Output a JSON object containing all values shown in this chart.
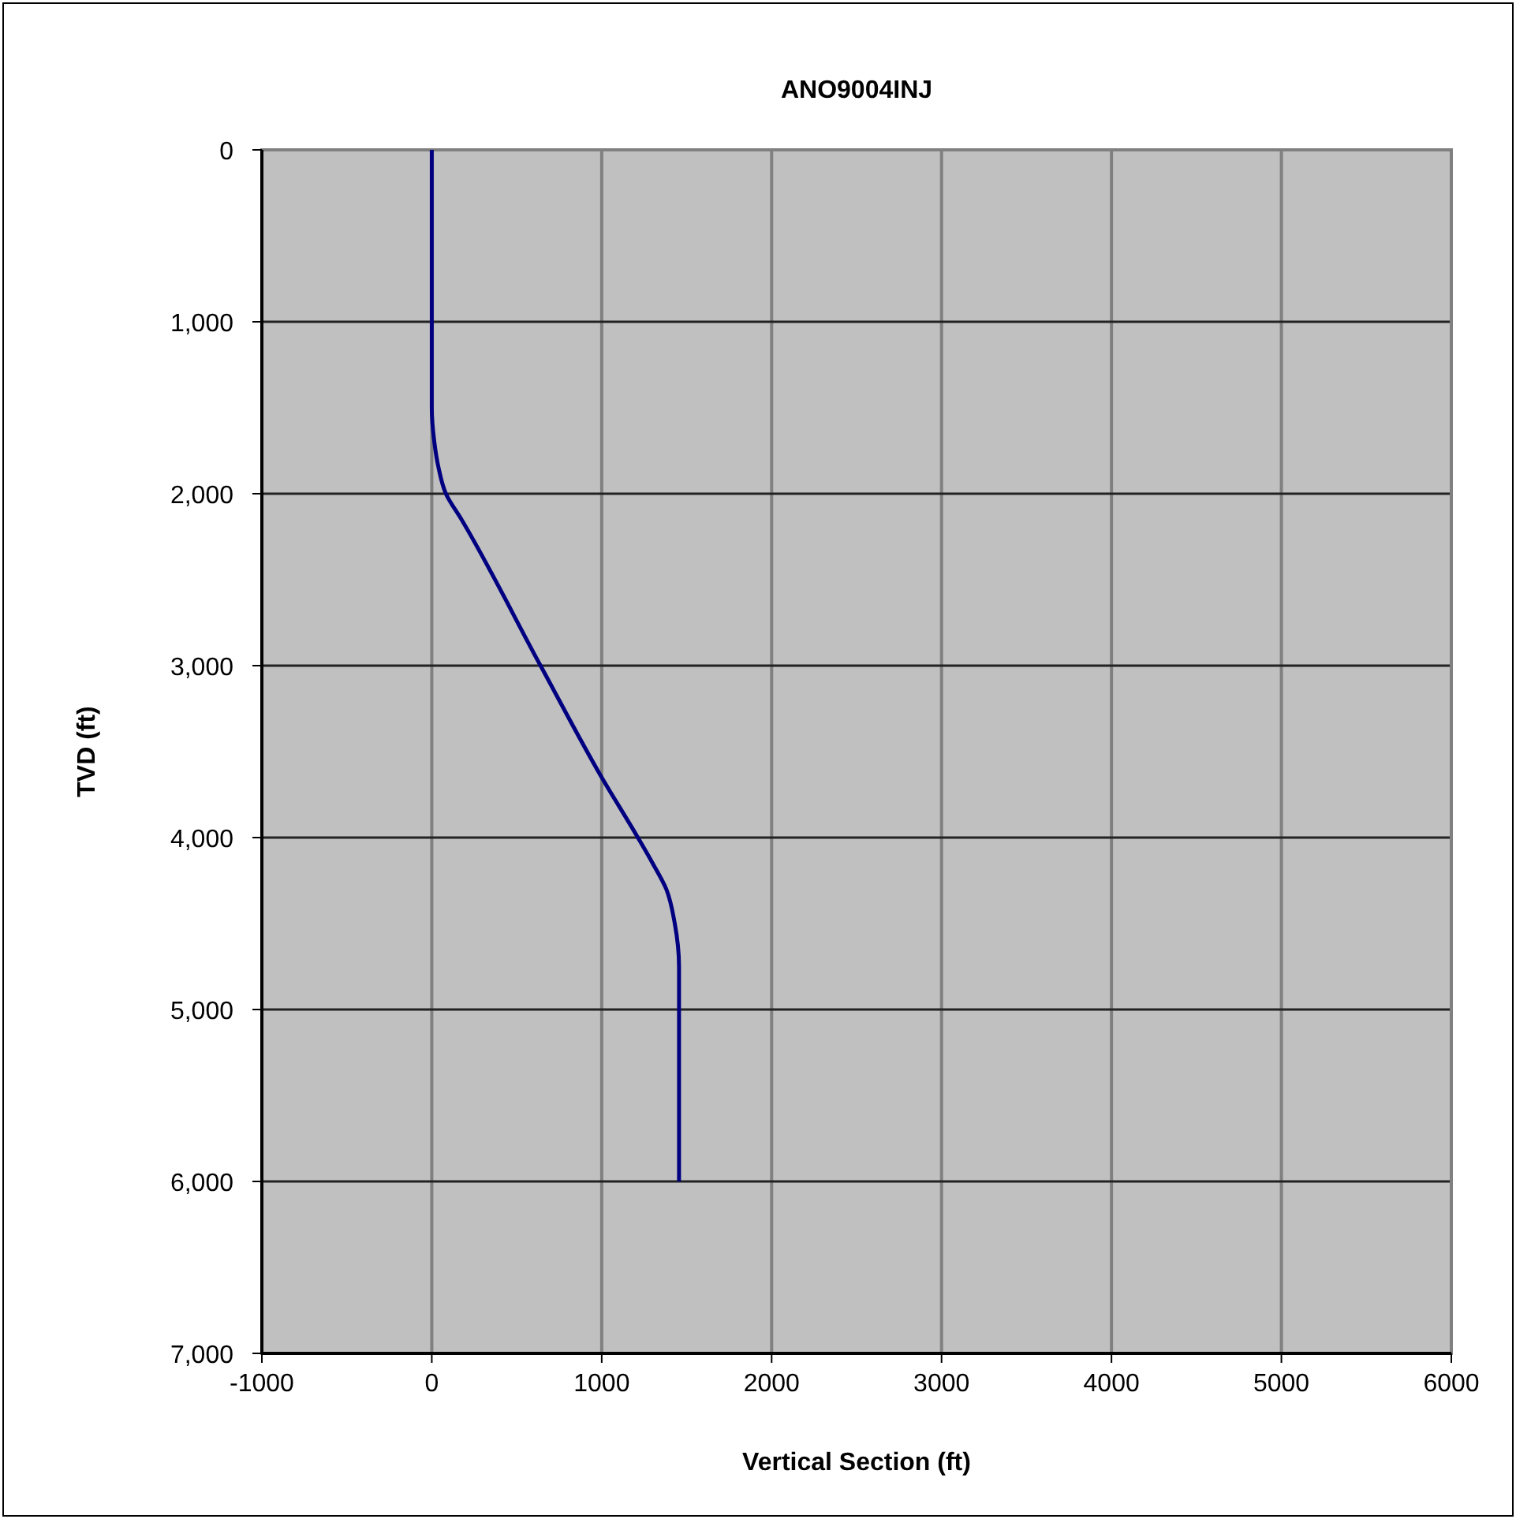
{
  "chart_data": {
    "type": "line",
    "title": "ANO9004INJ",
    "xlabel": "Vertical Section (ft)",
    "ylabel": "TVD (ft)",
    "xlim": [
      -1000,
      6000
    ],
    "xticks": [
      -1000,
      0,
      1000,
      2000,
      3000,
      4000,
      5000,
      6000
    ],
    "ylim": [
      7000,
      0
    ],
    "yticks": [
      {
        "value": 0,
        "label": "0"
      },
      {
        "value": 1000,
        "label": "1,000"
      },
      {
        "value": 2000,
        "label": "2,000"
      },
      {
        "value": 3000,
        "label": "3,000"
      },
      {
        "value": 4000,
        "label": "4,000"
      },
      {
        "value": 5000,
        "label": "5,000"
      },
      {
        "value": 6000,
        "label": "6,000"
      },
      {
        "value": 7000,
        "label": "7,000"
      }
    ],
    "grid": true,
    "marker": "none",
    "line_style": "solid",
    "series": [
      {
        "color": "#000080",
        "x": [
          0,
          0,
          15,
          40,
          83,
          175,
          640,
          1000,
          1213,
          1300,
          1380,
          1430,
          1455,
          1455
        ],
        "values": [
          0,
          1500,
          1700,
          1850,
          2000,
          2150,
          3000,
          3650,
          4000,
          4150,
          4300,
          4500,
          4750,
          6000
        ]
      }
    ]
  }
}
